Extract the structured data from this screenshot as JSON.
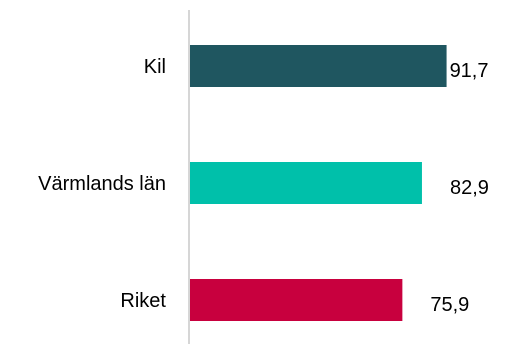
{
  "chart_data": {
    "type": "bar",
    "orientation": "horizontal",
    "categories": [
      "Kil",
      "Värmlands län",
      "Riket"
    ],
    "values": [
      91.7,
      82.9,
      75.9
    ],
    "value_labels": [
      "91,7",
      "82,9",
      "75,9"
    ],
    "colors": [
      "#1f5660",
      "#00c0aa",
      "#c8003e"
    ],
    "axis_color": "#c8c8c8",
    "title": "",
    "xlabel": "",
    "ylabel": "",
    "xlim": [
      0,
      100
    ],
    "grid": false,
    "legend": "none"
  }
}
